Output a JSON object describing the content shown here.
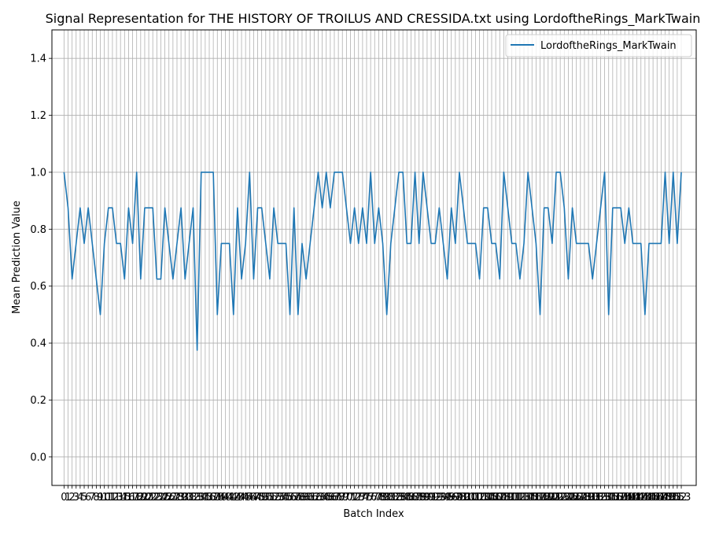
{
  "chart_data": {
    "type": "line",
    "title": "Signal Representation for THE HISTORY OF TROILUS AND CRESSIDA.txt using LordoftheRings_MarkTwain",
    "xlabel": "Batch Index",
    "ylabel": "Mean Prediction Value",
    "xlim": [
      -3,
      156.7
    ],
    "ylim": [
      -0.1,
      1.5
    ],
    "yticks": [
      0.0,
      0.2,
      0.4,
      0.6,
      0.8,
      1.0,
      1.2,
      1.4
    ],
    "ytick_labels": [
      "0.0",
      "0.2",
      "0.4",
      "0.6",
      "0.8",
      "1.0",
      "1.2",
      "1.4"
    ],
    "xticks_start": 0,
    "xticks_end": 153,
    "grid": true,
    "legend_position": "top-right",
    "series": [
      {
        "name": "LordoftheRings_MarkTwain",
        "color": "#1f77b4",
        "values": [
          1.0,
          0.875,
          0.625,
          0.75,
          0.875,
          0.75,
          0.875,
          0.75,
          0.625,
          0.5,
          0.75,
          0.875,
          0.875,
          0.75,
          0.75,
          0.625,
          0.875,
          0.75,
          1.0,
          0.625,
          0.875,
          0.875,
          0.875,
          0.625,
          0.625,
          0.875,
          0.75,
          0.625,
          0.75,
          0.875,
          0.625,
          0.75,
          0.875,
          0.375,
          1.0,
          1.0,
          1.0,
          1.0,
          0.5,
          0.75,
          0.75,
          0.75,
          0.5,
          0.875,
          0.625,
          0.75,
          1.0,
          0.625,
          0.875,
          0.875,
          0.75,
          0.625,
          0.875,
          0.75,
          0.75,
          0.75,
          0.5,
          0.875,
          0.5,
          0.75,
          0.625,
          0.75,
          0.875,
          1.0,
          0.875,
          1.0,
          0.875,
          1.0,
          1.0,
          1.0,
          0.875,
          0.75,
          0.875,
          0.75,
          0.875,
          0.75,
          1.0,
          0.75,
          0.875,
          0.75,
          0.5,
          0.75,
          0.875,
          1.0,
          1.0,
          0.75,
          0.75,
          1.0,
          0.75,
          1.0,
          0.875,
          0.75,
          0.75,
          0.875,
          0.75,
          0.625,
          0.875,
          0.75,
          1.0,
          0.875,
          0.75,
          0.75,
          0.75,
          0.625,
          0.875,
          0.875,
          0.75,
          0.75,
          0.625,
          1.0,
          0.875,
          0.75,
          0.75,
          0.625,
          0.75,
          1.0,
          0.875,
          0.75,
          0.5,
          0.875,
          0.875,
          0.75,
          1.0,
          1.0,
          0.875,
          0.625,
          0.875,
          0.75,
          0.75,
          0.75,
          0.75,
          0.625,
          0.75,
          0.875,
          1.0,
          0.5,
          0.875,
          0.875,
          0.875,
          0.75,
          0.875,
          0.75,
          0.75,
          0.75,
          0.5,
          0.75,
          0.75,
          0.75,
          0.75,
          1.0,
          0.75,
          1.0,
          0.75,
          1.0
        ]
      }
    ]
  }
}
